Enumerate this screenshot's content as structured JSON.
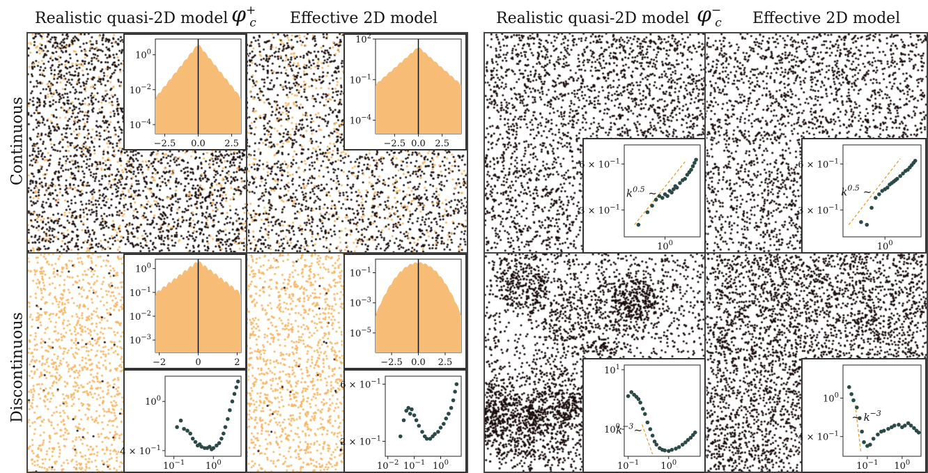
{
  "headers": {
    "left_realistic": "Realistic quasi-2D model",
    "left_phi": "φ",
    "left_phi_sup": "+",
    "left_phi_sub": "c",
    "left_effective": "Effective 2D model",
    "right_realistic": "Realistic quasi-2D model",
    "right_phi": "φ",
    "right_phi_sup": "−",
    "right_phi_sub": "c",
    "right_effective": "Effective 2D model"
  },
  "row_labels": {
    "top": "Continuous",
    "bottom": "Discontinuous"
  },
  "colors": {
    "particle_dark": "#1a0d0d",
    "particle_orange": "#f5b562",
    "hist_fill": "#f7bc75",
    "spectrum_point": "#2b4a47",
    "guide_line": "#e69b2e"
  },
  "chart_data": [
    {
      "type": "area",
      "id": "hist-cont-realistic",
      "scale": "log-y",
      "xlim": [
        -3.2,
        3.2
      ],
      "ylim": [
        3e-05,
        8
      ],
      "xticks": [
        "−2.5",
        "0.0",
        "2.5"
      ],
      "xtick_values": [
        -2.5,
        0,
        2.5
      ],
      "yticks": [
        "10",
        "10",
        "10"
      ],
      "ytick_exps": [
        "0",
        "−2",
        "−4"
      ],
      "ytick_values": [
        1,
        0.01,
        0.0001
      ],
      "peak": 4,
      "width": 0.45,
      "tail": 0.8
    },
    {
      "type": "area",
      "id": "hist-cont-effective",
      "scale": "log-y",
      "xlim": [
        -4.5,
        4.5
      ],
      "ylim": [
        1e-05,
        100
      ],
      "xticks": [
        "−2.5",
        "0.0",
        "2.5"
      ],
      "xtick_values": [
        -2.5,
        0,
        2.5
      ],
      "yticks": [
        "10",
        "10",
        "10"
      ],
      "ytick_exps": [
        "2",
        "−1",
        "−4"
      ],
      "ytick_values": [
        100,
        0.1,
        0.0001
      ],
      "peak": 25,
      "width": 0.7,
      "tail": 0.9
    },
    {
      "type": "area",
      "id": "hist-disc-realistic",
      "scale": "log-y",
      "xlim": [
        -2.2,
        2.2
      ],
      "ylim": [
        0.0003,
        2.5
      ],
      "xticks": [
        "−2",
        "0",
        "2"
      ],
      "xtick_values": [
        -2,
        0,
        2
      ],
      "yticks": [
        "10",
        "10",
        "10",
        "10"
      ],
      "ytick_exps": [
        "0",
        "−1",
        "−2",
        "−3"
      ],
      "ytick_values": [
        1,
        0.1,
        0.01,
        0.001
      ],
      "peak": 2,
      "width": 0.7,
      "tail": 0.6
    },
    {
      "type": "area",
      "id": "hist-disc-effective",
      "scale": "log-y",
      "xlim": [
        -4,
        4
      ],
      "ylim": [
        5e-07,
        0.8
      ],
      "xticks": [
        "−2.5",
        "0.0",
        "2.5"
      ],
      "xtick_values": [
        -2.5,
        0,
        2.5
      ],
      "yticks": [
        "10",
        "10",
        "10"
      ],
      "ytick_exps": [
        "−1",
        "−3",
        "−5"
      ],
      "ytick_values": [
        0.1,
        0.001,
        1e-05
      ],
      "peak": 0.45,
      "width": 1.0,
      "tail": 0.0
    },
    {
      "type": "scatter",
      "id": "spec-disc-realistic-left",
      "scale": "log-log",
      "xlim": [
        0.06,
        5
      ],
      "ylim": [
        0.36,
        1.6
      ],
      "xticks": [
        "10",
        "10"
      ],
      "xtick_exps": [
        "−1",
        "0"
      ],
      "xtick_values": [
        0.1,
        1
      ],
      "yticks": [
        "10",
        "4 × 10"
      ],
      "ytick_exps": [
        "0",
        "−1"
      ],
      "ytick_values": [
        1,
        0.4
      ],
      "x": [
        0.12,
        0.15,
        0.18,
        0.22,
        0.26,
        0.3,
        0.35,
        0.4,
        0.45,
        0.5,
        0.6,
        0.7,
        0.8,
        0.9,
        1.0,
        1.2,
        1.4,
        1.6,
        1.8,
        2.0,
        2.3,
        2.6,
        3.0,
        3.4,
        3.8,
        4.2
      ],
      "y": [
        0.62,
        0.7,
        0.6,
        0.58,
        0.55,
        0.5,
        0.47,
        0.44,
        0.45,
        0.43,
        0.42,
        0.42,
        0.43,
        0.41,
        0.42,
        0.44,
        0.46,
        0.5,
        0.55,
        0.62,
        0.72,
        0.85,
        1.0,
        1.15,
        1.3,
        1.45
      ]
    },
    {
      "type": "scatter",
      "id": "spec-disc-effective-left",
      "scale": "log-log",
      "xlim": [
        0.008,
        6
      ],
      "ylim": [
        0.15,
        0.7
      ],
      "xticks": [
        "10",
        "10",
        "10"
      ],
      "xtick_exps": [
        "−2",
        "−1",
        "0"
      ],
      "xtick_values": [
        0.01,
        0.1,
        1
      ],
      "yticks": [
        "6 × 10",
        "2 × 10"
      ],
      "ytick_exps": [
        "−1",
        "−1"
      ],
      "ytick_values": [
        0.6,
        0.2
      ],
      "x": [
        0.03,
        0.04,
        0.05,
        0.06,
        0.07,
        0.08,
        0.1,
        0.12,
        0.15,
        0.2,
        0.25,
        0.3,
        0.4,
        0.5,
        0.6,
        0.8,
        1.0,
        1.3,
        1.6,
        2.0,
        2.5,
        3.0,
        3.5,
        4.0
      ],
      "y": [
        0.22,
        0.3,
        0.36,
        0.38,
        0.34,
        0.37,
        0.33,
        0.3,
        0.27,
        0.24,
        0.22,
        0.21,
        0.21,
        0.22,
        0.23,
        0.24,
        0.26,
        0.28,
        0.31,
        0.34,
        0.38,
        0.44,
        0.52,
        0.6
      ]
    },
    {
      "type": "scatter",
      "id": "spec-cont-realistic-right",
      "scale": "log-log",
      "xlim": [
        0.2,
        4
      ],
      "ylim": [
        0.2,
        0.8
      ],
      "xticks": [
        "10"
      ],
      "xtick_exps": [
        "0"
      ],
      "xtick_values": [
        1
      ],
      "yticks": [
        "6 × 10",
        "3 × 10"
      ],
      "ytick_exps": [
        "−1",
        "−1"
      ],
      "ytick_values": [
        0.6,
        0.3
      ],
      "guide": {
        "label": "k",
        "exp": "0.5",
        "suffix": " ~",
        "x": [
          0.3,
          2.2
        ],
        "y": [
          0.24,
          0.62
        ]
      },
      "x": [
        0.35,
        0.5,
        0.6,
        0.7,
        0.8,
        0.9,
        1.0,
        1.1,
        1.2,
        1.3,
        1.4,
        1.5,
        1.6,
        1.8,
        2.0,
        2.2,
        2.4,
        2.6,
        2.8,
        3.0,
        3.2,
        3.4
      ],
      "y": [
        0.24,
        0.29,
        0.32,
        0.35,
        0.37,
        0.36,
        0.38,
        0.37,
        0.4,
        0.39,
        0.41,
        0.43,
        0.42,
        0.45,
        0.47,
        0.48,
        0.51,
        0.53,
        0.55,
        0.58,
        0.61,
        0.64
      ]
    },
    {
      "type": "scatter",
      "id": "spec-cont-effective-right",
      "scale": "log-log",
      "xlim": [
        0.2,
        4
      ],
      "ylim": [
        0.2,
        0.8
      ],
      "xticks": [
        "10"
      ],
      "xtick_exps": [
        "0"
      ],
      "xtick_values": [
        1
      ],
      "yticks": [
        "6 × 10",
        "3 × 10"
      ],
      "ytick_exps": [
        "−1",
        "−1"
      ],
      "ytick_values": [
        0.6,
        0.3
      ],
      "guide": {
        "label": "k",
        "exp": "0.5",
        "suffix": " ~",
        "x": [
          0.25,
          1.8
        ],
        "y": [
          0.24,
          0.65
        ]
      },
      "x": [
        0.4,
        0.5,
        0.6,
        0.7,
        0.8,
        0.9,
        1.0,
        1.1,
        1.2,
        1.3,
        1.4,
        1.5,
        1.6,
        1.8,
        2.0,
        2.2,
        2.4,
        2.6,
        2.8,
        3.0,
        3.2
      ],
      "y": [
        0.25,
        0.24,
        0.31,
        0.36,
        0.38,
        0.4,
        0.41,
        0.42,
        0.44,
        0.45,
        0.46,
        0.47,
        0.48,
        0.5,
        0.52,
        0.54,
        0.55,
        0.57,
        0.59,
        0.61,
        0.63
      ]
    },
    {
      "type": "scatter",
      "id": "spec-disc-realistic-right",
      "scale": "log-log",
      "xlim": [
        0.08,
        6
      ],
      "ylim": [
        0.35,
        12
      ],
      "xticks": [
        "10",
        "10"
      ],
      "xtick_exps": [
        "−1",
        "0"
      ],
      "xtick_values": [
        0.1,
        1
      ],
      "yticks": [
        "10",
        "10"
      ],
      "ytick_exps": [
        "1",
        "0"
      ],
      "ytick_values": [
        10,
        1
      ],
      "guide": {
        "label": "k",
        "exp": "−3",
        "suffix": "~",
        "x": [
          0.22,
          0.4
        ],
        "y": [
          1.2,
          0.38
        ]
      },
      "x": [
        0.1,
        0.12,
        0.14,
        0.16,
        0.18,
        0.2,
        0.23,
        0.26,
        0.3,
        0.35,
        0.4,
        0.45,
        0.5,
        0.6,
        0.7,
        0.8,
        1.0,
        1.2,
        1.5,
        1.8,
        2.2,
        2.6,
        3.0,
        3.5,
        4.0,
        4.5
      ],
      "y": [
        3.6,
        4.2,
        3.8,
        3.5,
        3.2,
        2.8,
        2.2,
        1.8,
        1.3,
        1.0,
        0.78,
        0.62,
        0.55,
        0.48,
        0.45,
        0.44,
        0.43,
        0.45,
        0.47,
        0.5,
        0.55,
        0.6,
        0.66,
        0.72,
        0.8,
        0.88
      ]
    },
    {
      "type": "scatter",
      "id": "spec-disc-effective-right",
      "scale": "log-log",
      "xlim": [
        0.02,
        3.5
      ],
      "ylim": [
        0.25,
        2.2
      ],
      "xticks": [
        "10",
        "10"
      ],
      "xtick_exps": [
        "−1",
        "0"
      ],
      "xtick_values": [
        0.1,
        1
      ],
      "yticks": [
        "10",
        "4 × 10"
      ],
      "ytick_exps": [
        "0",
        "−1"
      ],
      "ytick_values": [
        1,
        0.4
      ],
      "guide": {
        "label": "k",
        "exp": "−3",
        "prefix": "~  ",
        "x": [
          0.045,
          0.065
        ],
        "y": [
          0.85,
          0.28
        ]
      },
      "x": [
        0.03,
        0.035,
        0.04,
        0.05,
        0.06,
        0.07,
        0.08,
        0.1,
        0.12,
        0.15,
        0.2,
        0.25,
        0.3,
        0.4,
        0.5,
        0.6,
        0.8,
        1.0,
        1.2,
        1.5,
        1.8,
        2.2,
        2.6,
        3.0
      ],
      "y": [
        1.3,
        1.1,
        0.95,
        0.8,
        0.62,
        0.45,
        0.35,
        0.32,
        0.33,
        0.38,
        0.42,
        0.45,
        0.46,
        0.48,
        0.5,
        0.52,
        0.53,
        0.5,
        0.52,
        0.55,
        0.52,
        0.49,
        0.46,
        0.44
      ]
    }
  ]
}
